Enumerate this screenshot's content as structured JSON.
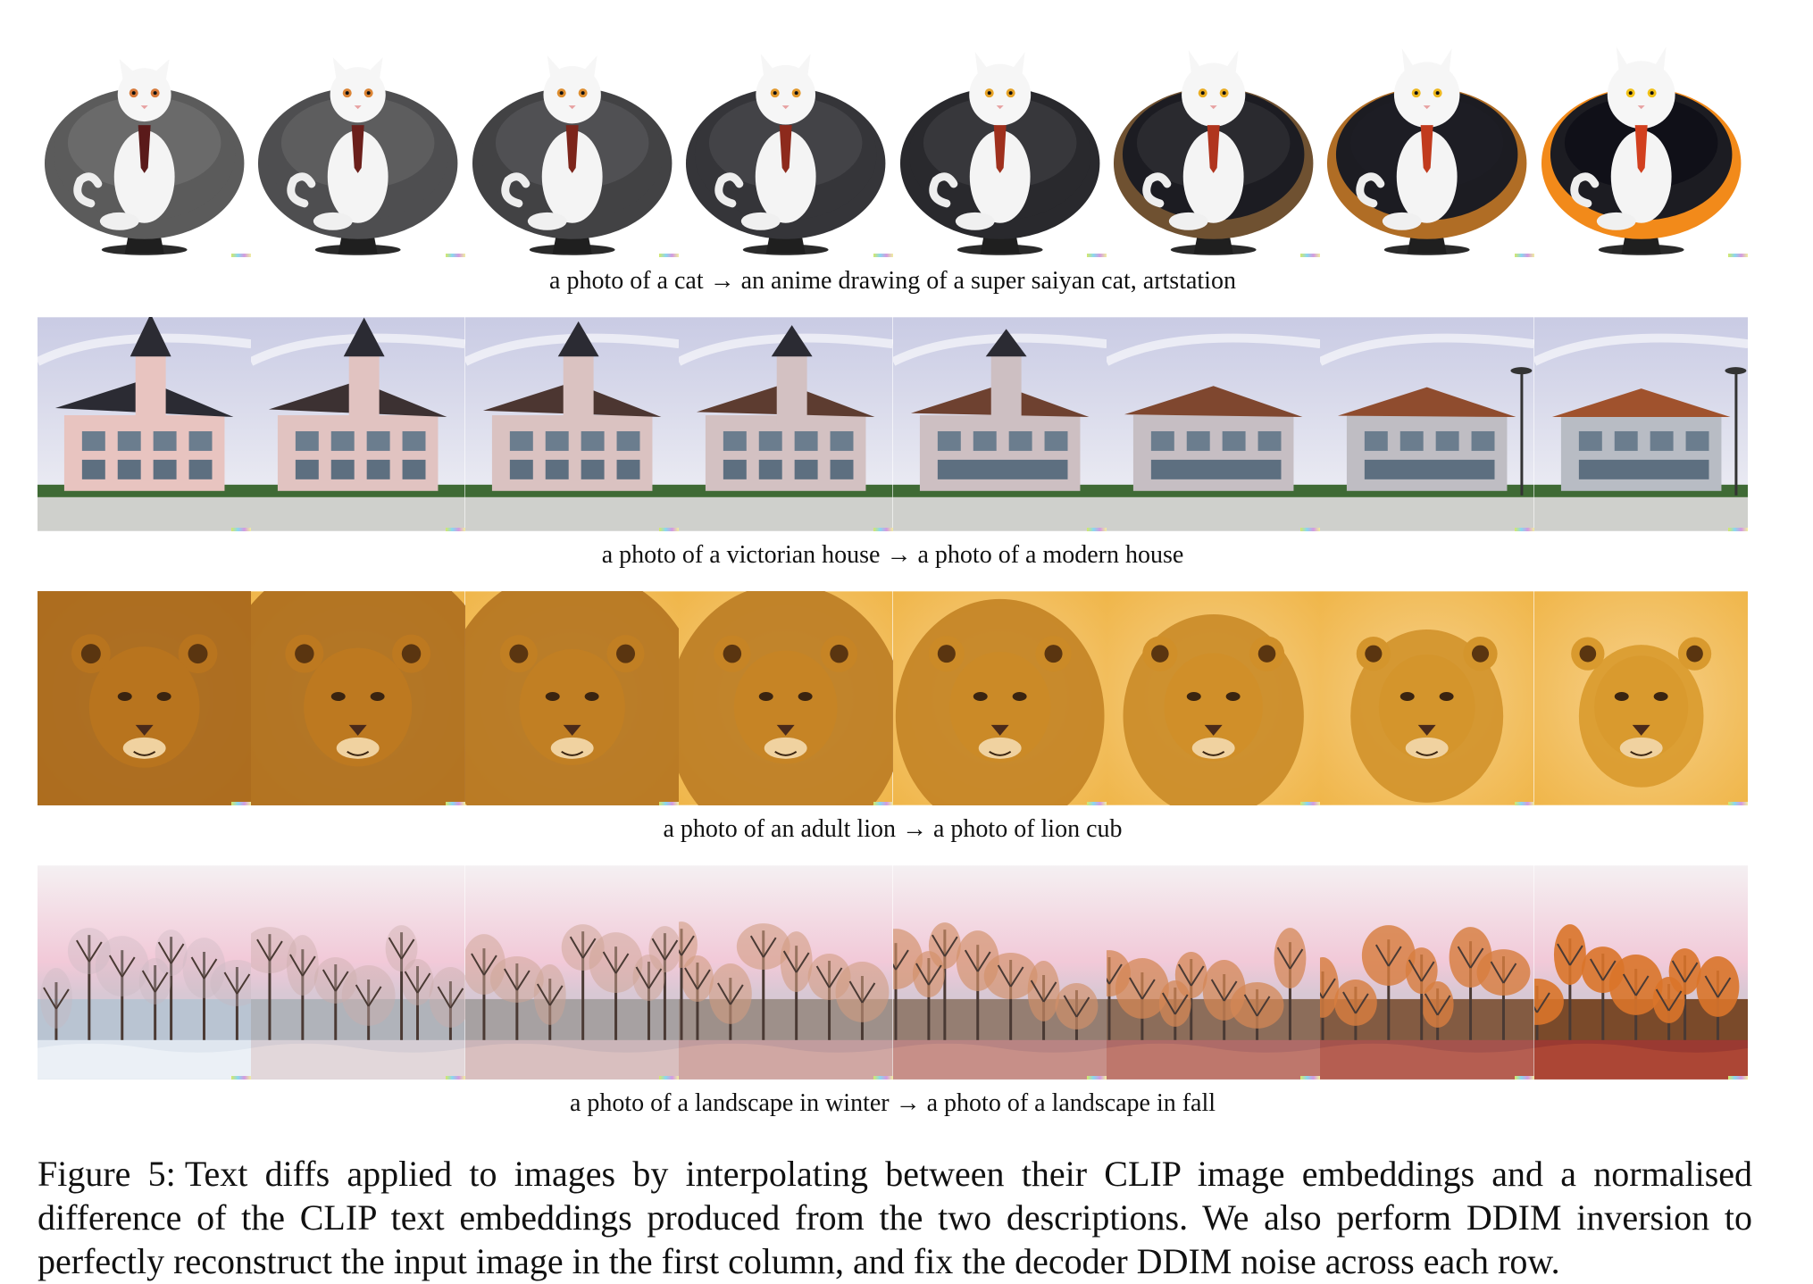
{
  "rows": [
    {
      "caption": "a photo of a cat → an anime drawing of a super saiyan cat, artstation",
      "scene": "cat",
      "frames": 8
    },
    {
      "caption": "a photo of a victorian house → a photo of a modern house",
      "scene": "house",
      "frames": 8
    },
    {
      "caption": "a photo of an adult lion → a photo of lion cub",
      "scene": "lion",
      "frames": 8
    },
    {
      "caption": "a photo of a landscape in winter → a photo of a landscape in fall",
      "scene": "landscape",
      "frames": 8
    }
  ],
  "figure_caption": {
    "label": "Figure 5:",
    "text": "Text diffs applied to images by interpolating between their CLIP image embeddings and a normalised difference of the CLIP text embeddings produced from the two descriptions. We also perform DDIM inversion to perfectly reconstruct the input image in the first column, and fix the decoder DDIM noise across each row."
  },
  "colors": {
    "chair_start": "#5b5b5b",
    "chair_end": "#f28a1a",
    "house_start": "#e8c4c0",
    "house_end": "#b8bcc4",
    "lion_bg": "#f0b64a",
    "lion_fur": "#c98a2a",
    "winter_ground": "#dfe6ef",
    "fall_ground": "#9a3a32",
    "sky_pink": "#f2c9d8"
  }
}
